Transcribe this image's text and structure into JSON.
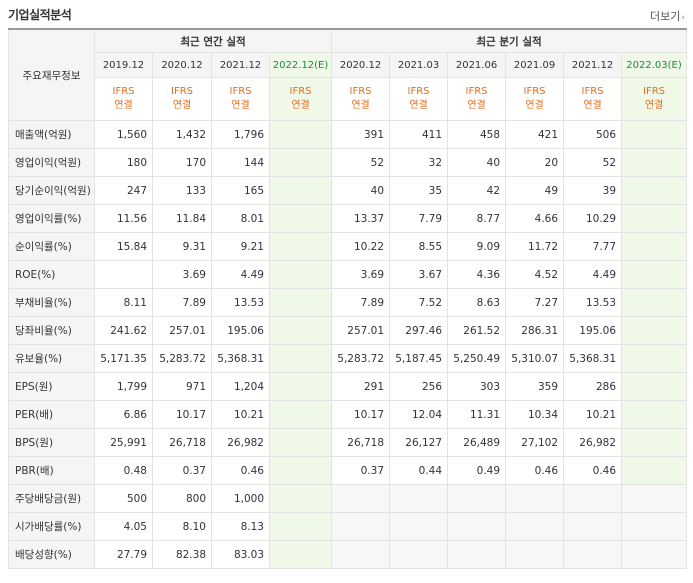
{
  "header": {
    "title": "기업실적분석",
    "more_label": "더보기",
    "more_arrow": "›"
  },
  "table": {
    "corner_label": "주요재무정보",
    "annual_group": "최근 연간 실적",
    "quarterly_group": "최근 분기 실적",
    "annual_periods": [
      "2019.12",
      "2020.12",
      "2021.12",
      "2022.12(E)"
    ],
    "quarterly_periods": [
      "2020.12",
      "2021.03",
      "2021.06",
      "2021.09",
      "2021.12",
      "2022.03(E)"
    ],
    "basis_line1": "IFRS",
    "basis_line2": "연결",
    "rows": [
      {
        "label": "매출액(억원)",
        "values": [
          "1,560",
          "1,432",
          "1,796",
          "",
          "391",
          "411",
          "458",
          "421",
          "506",
          ""
        ]
      },
      {
        "label": "영업이익(억원)",
        "values": [
          "180",
          "170",
          "144",
          "",
          "52",
          "32",
          "40",
          "20",
          "52",
          ""
        ]
      },
      {
        "label": "당기순이익(억원)",
        "values": [
          "247",
          "133",
          "165",
          "",
          "40",
          "35",
          "42",
          "49",
          "39",
          ""
        ]
      },
      {
        "label": "영업이익률(%)",
        "values": [
          "11.56",
          "11.84",
          "8.01",
          "",
          "13.37",
          "7.79",
          "8.77",
          "4.66",
          "10.29",
          ""
        ]
      },
      {
        "label": "순이익률(%)",
        "values": [
          "15.84",
          "9.31",
          "9.21",
          "",
          "10.22",
          "8.55",
          "9.09",
          "11.72",
          "7.77",
          ""
        ]
      },
      {
        "label": "ROE(%)",
        "values": [
          "",
          "3.69",
          "4.49",
          "",
          "3.69",
          "3.67",
          "4.36",
          "4.52",
          "4.49",
          ""
        ]
      },
      {
        "label": "부채비율(%)",
        "values": [
          "8.11",
          "7.89",
          "13.53",
          "",
          "7.89",
          "7.52",
          "8.63",
          "7.27",
          "13.53",
          ""
        ]
      },
      {
        "label": "당좌비율(%)",
        "values": [
          "241.62",
          "257.01",
          "195.06",
          "",
          "257.01",
          "297.46",
          "261.52",
          "286.31",
          "195.06",
          ""
        ]
      },
      {
        "label": "유보율(%)",
        "values": [
          "5,171.35",
          "5,283.72",
          "5,368.31",
          "",
          "5,283.72",
          "5,187.45",
          "5,250.49",
          "5,310.07",
          "5,368.31",
          ""
        ]
      },
      {
        "label": "EPS(원)",
        "values": [
          "1,799",
          "971",
          "1,204",
          "",
          "291",
          "256",
          "303",
          "359",
          "286",
          ""
        ]
      },
      {
        "label": "PER(배)",
        "values": [
          "6.86",
          "10.17",
          "10.21",
          "",
          "10.17",
          "12.04",
          "11.31",
          "10.34",
          "10.21",
          ""
        ]
      },
      {
        "label": "BPS(원)",
        "values": [
          "25,991",
          "26,718",
          "26,982",
          "",
          "26,718",
          "26,127",
          "26,489",
          "27,102",
          "26,982",
          ""
        ]
      },
      {
        "label": "PBR(배)",
        "values": [
          "0.48",
          "0.37",
          "0.46",
          "",
          "0.37",
          "0.44",
          "0.49",
          "0.46",
          "0.46",
          ""
        ]
      },
      {
        "label": "주당배당금(원)",
        "values": [
          "500",
          "800",
          "1,000",
          "",
          "",
          "",
          "",
          "",
          "",
          ""
        ]
      },
      {
        "label": "시가배당률(%)",
        "values": [
          "4.05",
          "8.10",
          "8.13",
          "",
          "",
          "",
          "",
          "",
          "",
          ""
        ]
      },
      {
        "label": "배당성향(%)",
        "values": [
          "27.79",
          "82.38",
          "83.03",
          "",
          "",
          "",
          "",
          "",
          "",
          ""
        ]
      }
    ]
  }
}
